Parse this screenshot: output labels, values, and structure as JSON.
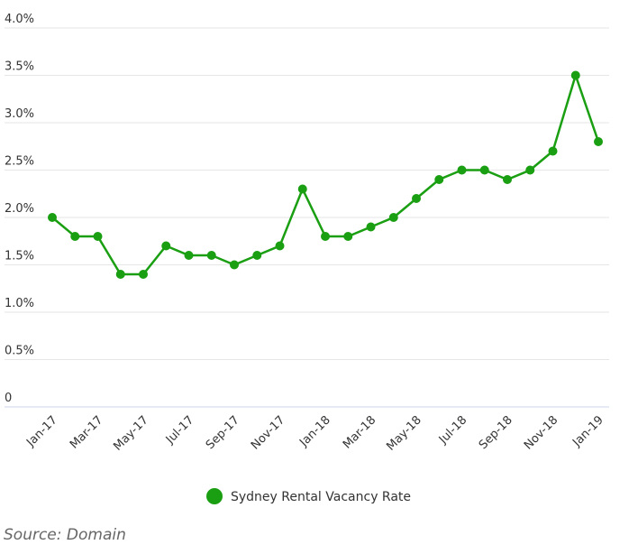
{
  "chart_data": {
    "type": "line",
    "title": "",
    "xlabel": "",
    "ylabel": "",
    "ylim": [
      0,
      4.0
    ],
    "y_ticks": [
      "0",
      "0.5%",
      "1.0%",
      "1.5%",
      "2.0%",
      "2.5%",
      "3.0%",
      "3.5%",
      "4.0%"
    ],
    "y_tick_values": [
      0,
      0.5,
      1.0,
      1.5,
      2.0,
      2.5,
      3.0,
      3.5,
      4.0
    ],
    "x": [
      "Jan-17",
      "Feb-17",
      "Mar-17",
      "Apr-17",
      "May-17",
      "Jun-17",
      "Jul-17",
      "Aug-17",
      "Sep-17",
      "Oct-17",
      "Nov-17",
      "Dec-17",
      "Jan-18",
      "Feb-18",
      "Mar-18",
      "Apr-18",
      "May-18",
      "Jun-18",
      "Jul-18",
      "Aug-18",
      "Sep-18",
      "Oct-18",
      "Nov-18",
      "Dec-18",
      "Jan-19"
    ],
    "x_tick_labels": [
      "Jan-17",
      "Mar-17",
      "May-17",
      "Jul-17",
      "Sep-17",
      "Nov-17",
      "Jan-18",
      "Mar-18",
      "May-18",
      "Jul-18",
      "Sep-18",
      "Nov-18",
      "Jan-19"
    ],
    "series": [
      {
        "name": "Sydney Rental Vacancy Rate",
        "color": "#1a9e12",
        "values": [
          2.0,
          1.8,
          1.8,
          1.4,
          1.4,
          1.7,
          1.6,
          1.6,
          1.5,
          1.6,
          1.7,
          2.3,
          1.8,
          1.8,
          1.9,
          2.0,
          2.2,
          2.4,
          2.5,
          2.5,
          2.4,
          2.5,
          2.7,
          3.5,
          2.8
        ]
      }
    ],
    "grid": true,
    "legend_position": "bottom-center"
  },
  "source": "Source: Domain"
}
